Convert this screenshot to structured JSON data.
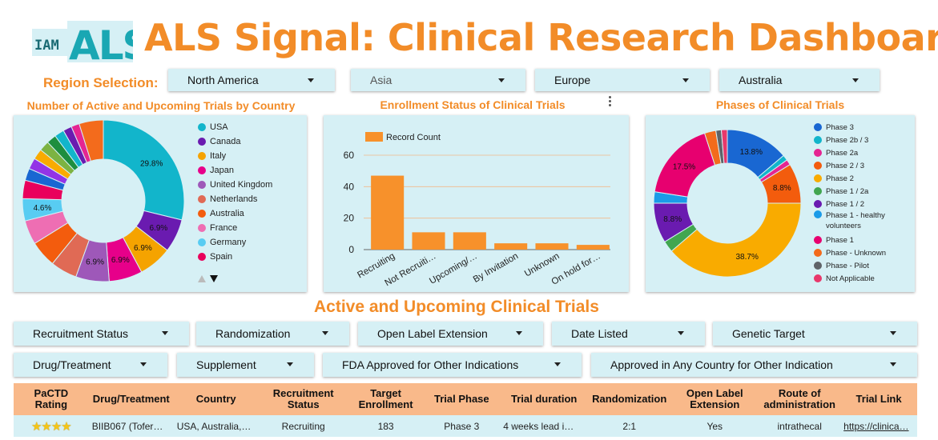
{
  "header": {
    "logo_text_small": "IAM",
    "logo_text_big": "ALS",
    "title": "ALS Signal: Clinical Research Dashboard"
  },
  "region": {
    "label": "Region Selection:",
    "dropdowns": [
      "North America",
      "Asia",
      "Europe",
      "Australia"
    ]
  },
  "chart_data": [
    {
      "type": "pie",
      "title": "Number of Active and Upcoming Trials by Country",
      "donut": true,
      "legend_position": "right",
      "legend": [
        "USA",
        "Canada",
        "Italy",
        "Japan",
        "United Kingdom",
        "Netherlands",
        "Australia",
        "France",
        "Germany",
        "Spain"
      ],
      "slices": [
        {
          "label": "USA",
          "value": 29.8,
          "color": "#12b5cb",
          "show_label": "29.8%"
        },
        {
          "label": "Canada",
          "value": 6.9,
          "color": "#6a1bb0",
          "show_label": "6.9%"
        },
        {
          "label": "Italy",
          "value": 6.9,
          "color": "#f5a300",
          "show_label": "6.9%"
        },
        {
          "label": "Japan",
          "value": 6.9,
          "color": "#e7008a",
          "show_label": "6.9%"
        },
        {
          "label": "United Kingdom",
          "value": 6.9,
          "color": "#9e58b9",
          "show_label": "6.9%"
        },
        {
          "label": "Netherlands",
          "value": 5.5,
          "color": "#e06a55",
          "show_label": ""
        },
        {
          "label": "Australia",
          "value": 5.5,
          "color": "#f35c0d",
          "show_label": ""
        },
        {
          "label": "France",
          "value": 5.0,
          "color": "#ee6eb3",
          "show_label": ""
        },
        {
          "label": "Germany",
          "value": 4.6,
          "color": "#58ccf2",
          "show_label": "4.6%"
        },
        {
          "label": "Spain",
          "value": 3.8,
          "color": "#e9005c",
          "show_label": ""
        },
        {
          "label": "",
          "value": 2.5,
          "color": "#1967d2",
          "show_label": ""
        },
        {
          "label": "",
          "value": 2.3,
          "color": "#9334e6",
          "show_label": ""
        },
        {
          "label": "",
          "value": 2.2,
          "color": "#f9ab00",
          "show_label": ""
        },
        {
          "label": "",
          "value": 2.1,
          "color": "#7cb342",
          "show_label": ""
        },
        {
          "label": "",
          "value": 2.0,
          "color": "#1e8e3e",
          "show_label": ""
        },
        {
          "label": "",
          "value": 2.0,
          "color": "#12b5cb",
          "show_label": ""
        },
        {
          "label": "",
          "value": 1.8,
          "color": "#6a1bb0",
          "show_label": ""
        },
        {
          "label": "",
          "value": 1.7,
          "color": "#e52592",
          "show_label": ""
        },
        {
          "label": "",
          "value": 5.0,
          "color": "#f36b1c",
          "show_label": ""
        }
      ]
    },
    {
      "type": "bar",
      "title": "Enrollment Status of Clinical Trials",
      "legend": [
        "Record Count"
      ],
      "color": "#f7912b",
      "categories": [
        "Recruiting",
        "Not Recruiti…",
        "Upcoming/…",
        "By Invitation",
        "Unknown",
        "On hold for…"
      ],
      "values": [
        47,
        11,
        11,
        4,
        4,
        3
      ],
      "yticks": [
        "0",
        "20",
        "40",
        "60"
      ],
      "ylim": [
        0,
        60
      ]
    },
    {
      "type": "pie",
      "title": "Phases of Clinical Trials",
      "donut": true,
      "legend_position": "right",
      "legend": [
        "Phase 3",
        "Phase 2b / 3",
        "Phase 2a",
        "Phase 2 / 3",
        "Phase 2",
        "Phase 1 / 2a",
        "Phase 1 / 2",
        "Phase 1 - healthy volunteers",
        "Phase 1",
        "Phase - Unknown",
        "Phase - Pilot",
        "Not Applicable"
      ],
      "slices": [
        {
          "label": "Phase 3",
          "value": 13.8,
          "color": "#1967d2",
          "show_label": "13.8%"
        },
        {
          "label": "Phase 2b / 3",
          "value": 1.2,
          "color": "#12b5cb",
          "show_label": ""
        },
        {
          "label": "Phase 2a",
          "value": 1.2,
          "color": "#e52592",
          "show_label": ""
        },
        {
          "label": "Phase 2 / 3",
          "value": 8.8,
          "color": "#f35c0d",
          "show_label": "8.8%"
        },
        {
          "label": "Phase 2",
          "value": 38.7,
          "color": "#f9ab00",
          "show_label": "38.7%"
        },
        {
          "label": "Phase 1 / 2a",
          "value": 2.5,
          "color": "#41a650",
          "show_label": ""
        },
        {
          "label": "Phase 1 / 2",
          "value": 8.8,
          "color": "#6a1bb0",
          "show_label": "8.8%"
        },
        {
          "label": "Phase 1 - healthy volunteers",
          "value": 2.5,
          "color": "#1a9be8",
          "show_label": ""
        },
        {
          "label": "Phase 1",
          "value": 17.5,
          "color": "#e7006f",
          "show_label": "17.5%"
        },
        {
          "label": "Phase - Unknown",
          "value": 2.5,
          "color": "#f36b1c",
          "show_label": ""
        },
        {
          "label": "Phase - Pilot",
          "value": 1.2,
          "color": "#5f6368",
          "show_label": ""
        },
        {
          "label": "Not Applicable",
          "value": 1.3,
          "color": "#e8386b",
          "show_label": ""
        }
      ]
    }
  ],
  "section": {
    "title": "Active and Upcoming Clinical Trials"
  },
  "filters_row1": [
    "Recruitment Status",
    "Randomization",
    "Open Label Extension",
    "Date Listed",
    "Genetic Target"
  ],
  "filters_row2": [
    "Drug/Treatment",
    "Supplement",
    "FDA Approved for Other Indications",
    "Approved in Any Country for Other Indication"
  ],
  "table": {
    "headers": [
      "PaCTD Rating",
      "Drug/Treatment",
      "Country",
      "Recruitment Status",
      "Target Enrollment",
      "Trial Phase",
      "Trial duration",
      "Randomization",
      "Open Label Extension",
      "Route of administration",
      "Trial Link"
    ],
    "rows": [
      {
        "rating": "★★★★",
        "drug": "BIIB067 (Tofer…",
        "country": "USA, Australia,…",
        "status": "Recruiting",
        "enrollment": "183",
        "phase": "Phase 3",
        "duration": "4 weeks lead i…",
        "randomization": "2:1",
        "ole": "Yes",
        "route": "intrathecal",
        "link": "https://clinica…"
      }
    ]
  }
}
